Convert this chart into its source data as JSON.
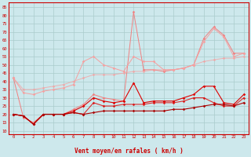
{
  "x": [
    0,
    1,
    2,
    3,
    4,
    5,
    6,
    7,
    8,
    9,
    10,
    11,
    12,
    13,
    14,
    15,
    16,
    17,
    18,
    19,
    20,
    21,
    22,
    23
  ],
  "line1": [
    42,
    18,
    15,
    20,
    20,
    20,
    23,
    26,
    32,
    30,
    29,
    28,
    82,
    47,
    47,
    46,
    47,
    48,
    50,
    66,
    73,
    68,
    57,
    57
  ],
  "line2": [
    42,
    33,
    32,
    34,
    35,
    36,
    38,
    52,
    55,
    50,
    48,
    46,
    55,
    52,
    52,
    47,
    47,
    48,
    50,
    64,
    72,
    67,
    55,
    57
  ],
  "line3": [
    42,
    35,
    35,
    36,
    37,
    38,
    40,
    42,
    44,
    44,
    44,
    45,
    46,
    46,
    47,
    47,
    47,
    48,
    50,
    52,
    53,
    54,
    54,
    55
  ],
  "line4": [
    20,
    19,
    14,
    20,
    20,
    20,
    22,
    25,
    30,
    28,
    27,
    28,
    39,
    27,
    28,
    28,
    28,
    30,
    32,
    37,
    37,
    27,
    26,
    32
  ],
  "line5": [
    20,
    19,
    14,
    20,
    20,
    20,
    21,
    20,
    27,
    25,
    25,
    26,
    26,
    26,
    27,
    27,
    27,
    28,
    30,
    30,
    27,
    25,
    25,
    30
  ],
  "line6": [
    20,
    19,
    14,
    20,
    20,
    20,
    21,
    20,
    21,
    22,
    22,
    22,
    22,
    22,
    22,
    22,
    23,
    23,
    24,
    25,
    26,
    26,
    25,
    27
  ],
  "xlabel": "Vent moyen/en rafales ( km/h )",
  "ylim": [
    8,
    88
  ],
  "yticks": [
    10,
    15,
    20,
    25,
    30,
    35,
    40,
    45,
    50,
    55,
    60,
    65,
    70,
    75,
    80,
    85
  ],
  "bg_color": "#cde8ec",
  "grid_color": "#aacccc",
  "color_light1": "#f08080",
  "color_light2": "#f5a0a0",
  "color_dark1": "#dd0000",
  "color_dark2": "#aa0000",
  "arrow_angles": [
    45,
    45,
    45,
    60,
    90,
    90,
    90,
    90,
    90,
    0,
    0,
    0,
    0,
    0,
    0,
    0,
    0,
    45,
    0,
    0,
    0,
    45,
    45,
    45
  ]
}
